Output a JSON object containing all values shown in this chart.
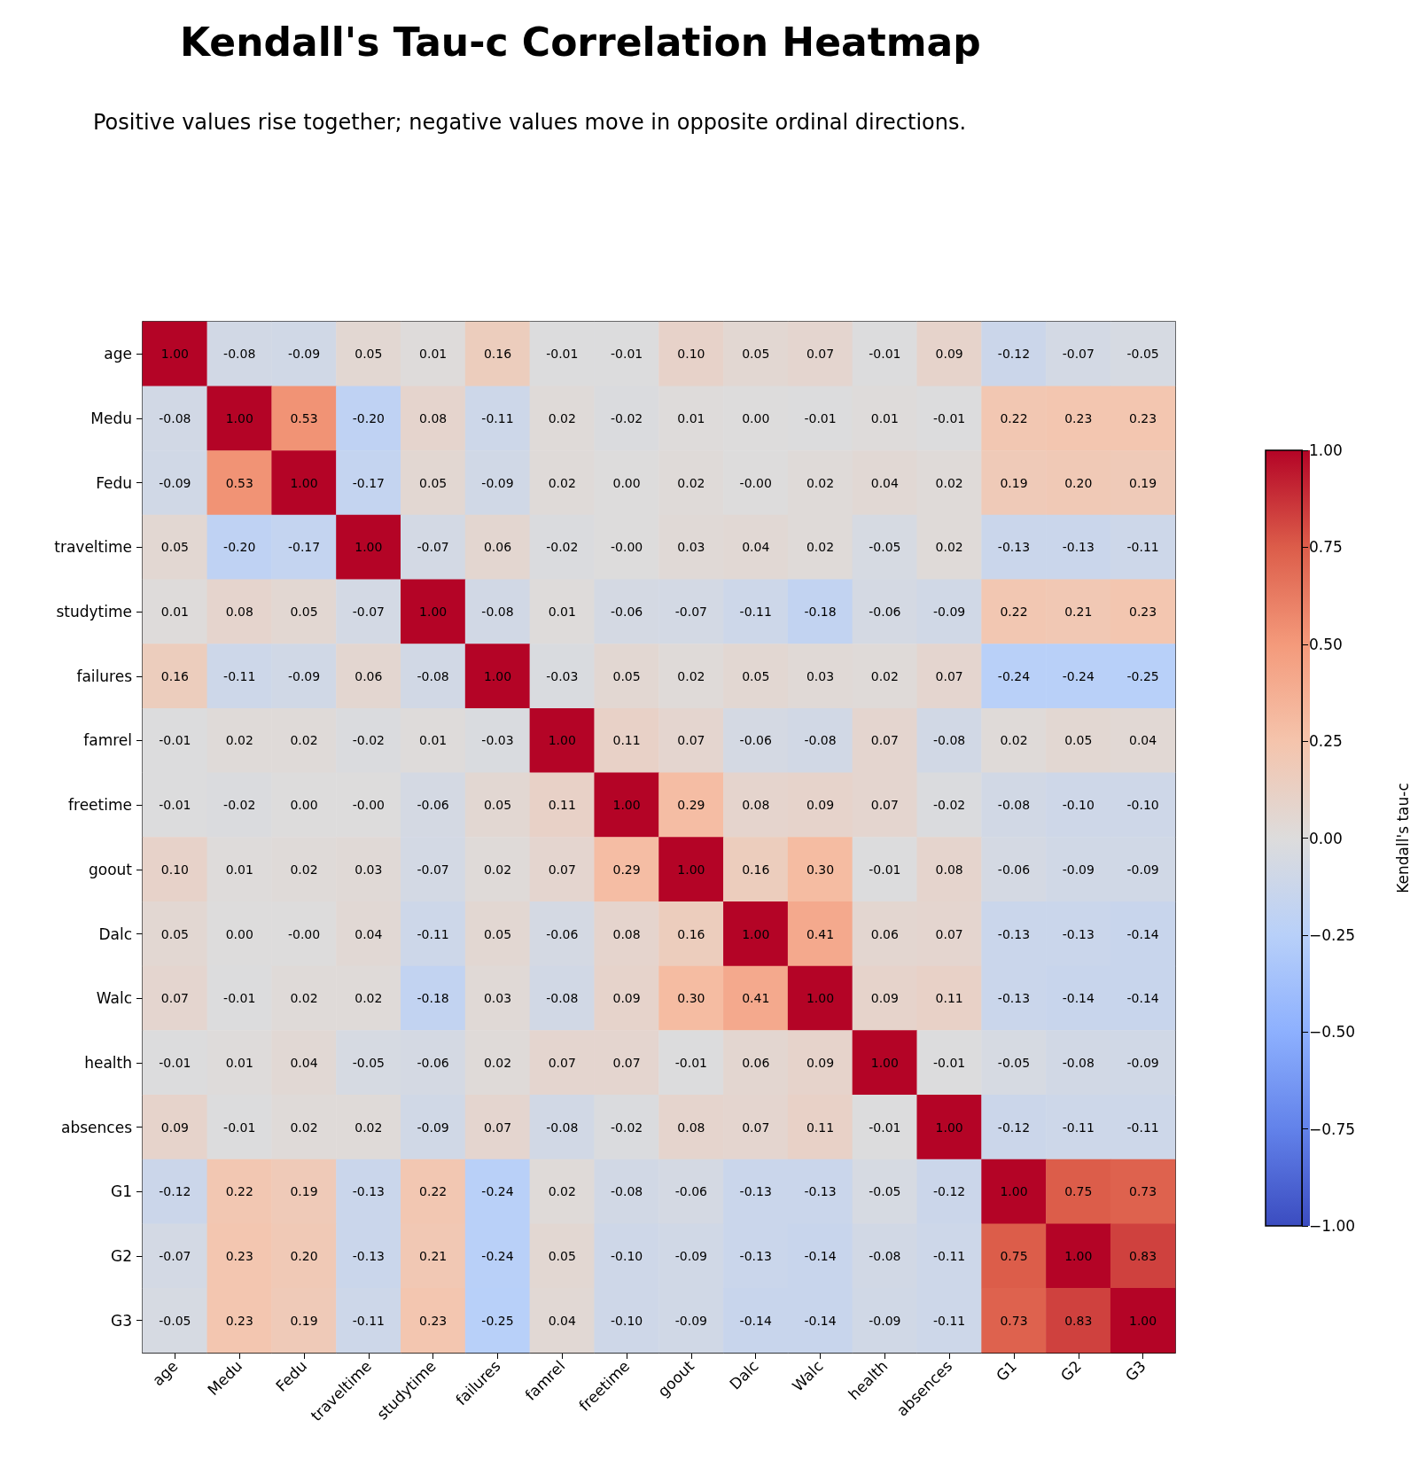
{
  "chart_data": {
    "type": "heatmap",
    "title": "Kendall's Tau-c Correlation Heatmap",
    "subtitle": "Positive values rise together; negative values move in opposite ordinal directions.",
    "clabel": "Kendall's tau-c",
    "categories": [
      "age",
      "Medu",
      "Fedu",
      "traveltime",
      "studytime",
      "failures",
      "famrel",
      "freetime",
      "goout",
      "Dalc",
      "Walc",
      "health",
      "absences",
      "G1",
      "G2",
      "G3"
    ],
    "y_categories": [
      "age",
      "Medu",
      "Fedu",
      "traveltime",
      "studytime",
      "failures",
      "famrel",
      "freetime",
      "goout",
      "Dalc",
      "Walc",
      "health",
      "absences",
      "G1",
      "G2",
      "G3"
    ],
    "cells": [
      [
        1.0,
        -0.08,
        -0.09,
        0.05,
        0.01,
        0.16,
        -0.01,
        -0.01,
        0.1,
        0.05,
        0.07,
        -0.01,
        0.09,
        -0.12,
        -0.07,
        -0.05
      ],
      [
        -0.08,
        1.0,
        0.53,
        -0.2,
        0.08,
        -0.11,
        0.02,
        -0.02,
        0.01,
        0.0,
        -0.01,
        0.01,
        -0.01,
        0.22,
        0.23,
        0.23
      ],
      [
        -0.09,
        0.53,
        1.0,
        -0.17,
        0.05,
        -0.09,
        0.02,
        0.0,
        0.02,
        -0.0,
        0.02,
        0.04,
        0.02,
        0.19,
        0.2,
        0.19
      ],
      [
        0.05,
        -0.2,
        -0.17,
        1.0,
        -0.07,
        0.06,
        -0.02,
        -0.0,
        0.03,
        0.04,
        0.02,
        -0.05,
        0.02,
        -0.13,
        -0.13,
        -0.11
      ],
      [
        0.01,
        0.08,
        0.05,
        -0.07,
        1.0,
        -0.08,
        0.01,
        -0.06,
        -0.07,
        -0.11,
        -0.18,
        -0.06,
        -0.09,
        0.22,
        0.21,
        0.23
      ],
      [
        0.16,
        -0.11,
        -0.09,
        0.06,
        -0.08,
        1.0,
        -0.03,
        0.05,
        0.02,
        0.05,
        0.03,
        0.02,
        0.07,
        -0.24,
        -0.24,
        -0.25
      ],
      [
        -0.01,
        0.02,
        0.02,
        -0.02,
        0.01,
        -0.03,
        1.0,
        0.11,
        0.07,
        -0.06,
        -0.08,
        0.07,
        -0.08,
        0.02,
        0.05,
        0.04
      ],
      [
        -0.01,
        -0.02,
        0.0,
        -0.0,
        -0.06,
        0.05,
        0.11,
        1.0,
        0.29,
        0.08,
        0.09,
        0.07,
        -0.02,
        -0.08,
        -0.1,
        -0.1
      ],
      [
        0.1,
        0.01,
        0.02,
        0.03,
        -0.07,
        0.02,
        0.07,
        0.29,
        1.0,
        0.16,
        0.3,
        -0.01,
        0.08,
        -0.06,
        -0.09,
        -0.09
      ],
      [
        0.05,
        0.0,
        -0.0,
        0.04,
        -0.11,
        0.05,
        -0.06,
        0.08,
        0.16,
        1.0,
        0.41,
        0.06,
        0.07,
        -0.13,
        -0.13,
        -0.14
      ],
      [
        0.07,
        -0.01,
        0.02,
        0.02,
        -0.18,
        0.03,
        -0.08,
        0.09,
        0.3,
        0.41,
        1.0,
        0.09,
        0.11,
        -0.13,
        -0.14,
        -0.14
      ],
      [
        -0.01,
        0.01,
        0.04,
        -0.05,
        -0.06,
        0.02,
        0.07,
        0.07,
        -0.01,
        0.06,
        0.09,
        1.0,
        -0.01,
        -0.05,
        -0.08,
        -0.09
      ],
      [
        0.09,
        -0.01,
        0.02,
        0.02,
        -0.09,
        0.07,
        -0.08,
        -0.02,
        0.08,
        0.07,
        0.11,
        -0.01,
        1.0,
        -0.12,
        -0.11,
        -0.11
      ],
      [
        -0.12,
        0.22,
        0.19,
        -0.13,
        0.22,
        -0.24,
        0.02,
        -0.08,
        -0.06,
        -0.13,
        -0.13,
        -0.05,
        -0.12,
        1.0,
        0.75,
        0.73
      ],
      [
        -0.07,
        0.23,
        0.2,
        -0.13,
        0.21,
        -0.24,
        0.05,
        -0.1,
        -0.09,
        -0.13,
        -0.14,
        -0.08,
        -0.11,
        0.75,
        1.0,
        0.83
      ],
      [
        -0.05,
        0.23,
        0.19,
        -0.11,
        0.23,
        -0.25,
        0.04,
        -0.1,
        -0.09,
        -0.14,
        -0.14,
        -0.09,
        -0.11,
        0.73,
        0.83,
        1.0
      ]
    ],
    "cell_labels": [
      [
        "1.00",
        "-0.08",
        "-0.09",
        "0.05",
        "0.01",
        "0.16",
        "-0.01",
        "-0.01",
        "0.10",
        "0.05",
        "0.07",
        "-0.01",
        "0.09",
        "-0.12",
        "-0.07",
        "-0.05"
      ],
      [
        "-0.08",
        "1.00",
        "0.53",
        "-0.20",
        "0.08",
        "-0.11",
        "0.02",
        "-0.02",
        "0.01",
        "0.00",
        "-0.01",
        "0.01",
        "-0.01",
        "0.22",
        "0.23",
        "0.23"
      ],
      [
        "-0.09",
        "0.53",
        "1.00",
        "-0.17",
        "0.05",
        "-0.09",
        "0.02",
        "0.00",
        "0.02",
        "-0.00",
        "0.02",
        "0.04",
        "0.02",
        "0.19",
        "0.20",
        "0.19"
      ],
      [
        "0.05",
        "-0.20",
        "-0.17",
        "1.00",
        "-0.07",
        "0.06",
        "-0.02",
        "-0.00",
        "0.03",
        "0.04",
        "0.02",
        "-0.05",
        "0.02",
        "-0.13",
        "-0.13",
        "-0.11"
      ],
      [
        "0.01",
        "0.08",
        "0.05",
        "-0.07",
        "1.00",
        "-0.08",
        "0.01",
        "-0.06",
        "-0.07",
        "-0.11",
        "-0.18",
        "-0.06",
        "-0.09",
        "0.22",
        "0.21",
        "0.23"
      ],
      [
        "0.16",
        "-0.11",
        "-0.09",
        "0.06",
        "-0.08",
        "1.00",
        "-0.03",
        "0.05",
        "0.02",
        "0.05",
        "0.03",
        "0.02",
        "0.07",
        "-0.24",
        "-0.24",
        "-0.25"
      ],
      [
        "-0.01",
        "0.02",
        "0.02",
        "-0.02",
        "0.01",
        "-0.03",
        "1.00",
        "0.11",
        "0.07",
        "-0.06",
        "-0.08",
        "0.07",
        "-0.08",
        "0.02",
        "0.05",
        "0.04"
      ],
      [
        "-0.01",
        "-0.02",
        "0.00",
        "-0.00",
        "-0.06",
        "0.05",
        "0.11",
        "1.00",
        "0.29",
        "0.08",
        "0.09",
        "0.07",
        "-0.02",
        "-0.08",
        "-0.10",
        "-0.10"
      ],
      [
        "0.10",
        "0.01",
        "0.02",
        "0.03",
        "-0.07",
        "0.02",
        "0.07",
        "0.29",
        "1.00",
        "0.16",
        "0.30",
        "-0.01",
        "0.08",
        "-0.06",
        "-0.09",
        "-0.09"
      ],
      [
        "0.05",
        "0.00",
        "-0.00",
        "0.04",
        "-0.11",
        "0.05",
        "-0.06",
        "0.08",
        "0.16",
        "1.00",
        "0.41",
        "0.06",
        "0.07",
        "-0.13",
        "-0.13",
        "-0.14"
      ],
      [
        "0.07",
        "-0.01",
        "0.02",
        "0.02",
        "-0.18",
        "0.03",
        "-0.08",
        "0.09",
        "0.30",
        "0.41",
        "1.00",
        "0.09",
        "0.11",
        "-0.13",
        "-0.14",
        "-0.14"
      ],
      [
        "-0.01",
        "0.01",
        "0.04",
        "-0.05",
        "-0.06",
        "0.02",
        "0.07",
        "0.07",
        "-0.01",
        "0.06",
        "0.09",
        "1.00",
        "-0.01",
        "-0.05",
        "-0.08",
        "-0.09"
      ],
      [
        "0.09",
        "-0.01",
        "0.02",
        "0.02",
        "-0.09",
        "0.07",
        "-0.08",
        "-0.02",
        "0.08",
        "0.07",
        "0.11",
        "-0.01",
        "1.00",
        "-0.12",
        "-0.11",
        "-0.11"
      ],
      [
        "-0.12",
        "0.22",
        "0.19",
        "-0.13",
        "0.22",
        "-0.24",
        "0.02",
        "-0.08",
        "-0.06",
        "-0.13",
        "-0.13",
        "-0.05",
        "-0.12",
        "1.00",
        "0.75",
        "0.73"
      ],
      [
        "-0.07",
        "0.23",
        "0.20",
        "-0.13",
        "0.21",
        "-0.24",
        "0.05",
        "-0.10",
        "-0.09",
        "-0.13",
        "-0.14",
        "-0.08",
        "-0.11",
        "0.75",
        "1.00",
        "0.83"
      ],
      [
        "-0.05",
        "0.23",
        "0.19",
        "-0.11",
        "0.23",
        "-0.25",
        "0.04",
        "-0.10",
        "-0.09",
        "-0.14",
        "-0.14",
        "-0.09",
        "-0.11",
        "0.73",
        "0.83",
        "1.00"
      ]
    ],
    "clim": [
      -1,
      1
    ],
    "cticks": [
      {
        "value": -1,
        "label": "−1.00"
      },
      {
        "value": -0.75,
        "label": "−0.75"
      },
      {
        "value": -0.5,
        "label": "−0.50"
      },
      {
        "value": -0.25,
        "label": "−0.25"
      },
      {
        "value": 0,
        "label": "0.00"
      },
      {
        "value": 0.25,
        "label": "0.25"
      },
      {
        "value": 0.5,
        "label": "0.50"
      },
      {
        "value": 0.75,
        "label": "0.75"
      },
      {
        "value": 1,
        "label": "1.00"
      }
    ],
    "data_labels": true
  }
}
